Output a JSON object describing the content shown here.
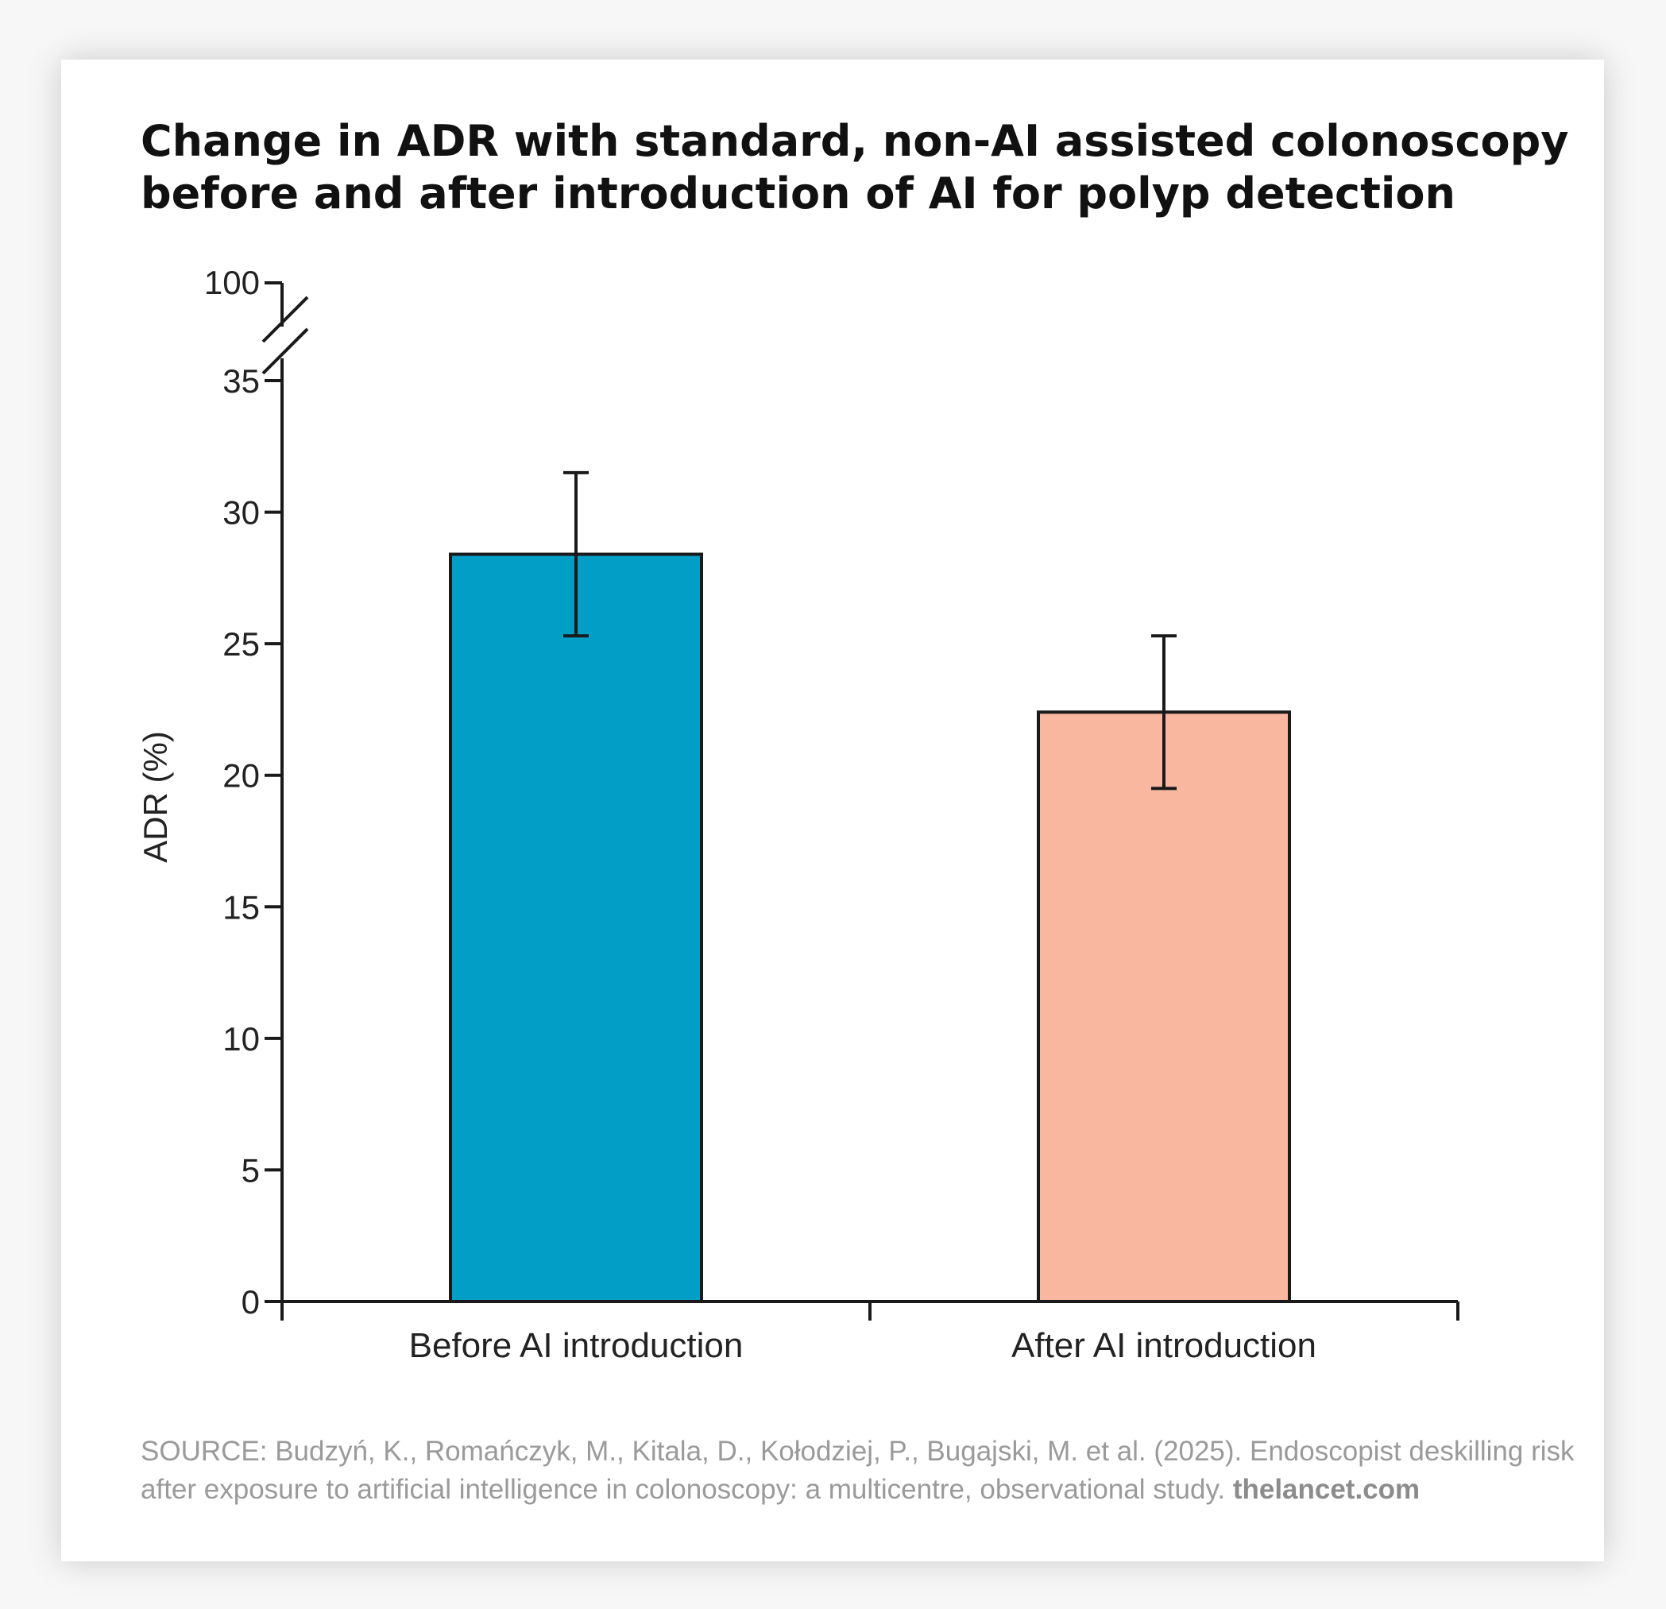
{
  "chart_data": {
    "type": "bar",
    "title_lines": [
      "Change in ADR with standard, non-AI assisted colonoscopy",
      "before and after introduction of AI for polyp detection"
    ],
    "ylabel": "ADR (%)",
    "xlabel": "",
    "categories": [
      "Before AI introduction",
      "After AI introduction"
    ],
    "values": [
      28.4,
      22.4
    ],
    "error_bars": [
      {
        "low": 25.3,
        "high": 31.5
      },
      {
        "low": 19.5,
        "high": 25.3
      }
    ],
    "colors": [
      "#029ec6",
      "#f8b79e"
    ],
    "ylim": [
      0,
      35
    ],
    "yticks": [
      "0",
      "5",
      "10",
      "15",
      "20",
      "25",
      "30",
      "35"
    ],
    "ybreak_top_label": "100",
    "axis_break": true,
    "grid": false,
    "legend": "none"
  },
  "source": {
    "line1": "SOURCE: Budzyń, K., Romańczyk, M., Kitala, D., Kołodziej, P., Bugajski, M. et al. (2025). Endoscopist deskilling risk",
    "line2": "after exposure to artificial intelligence in colonoscopy: a multicentre, observational study.",
    "brand": "thelancet.com"
  }
}
